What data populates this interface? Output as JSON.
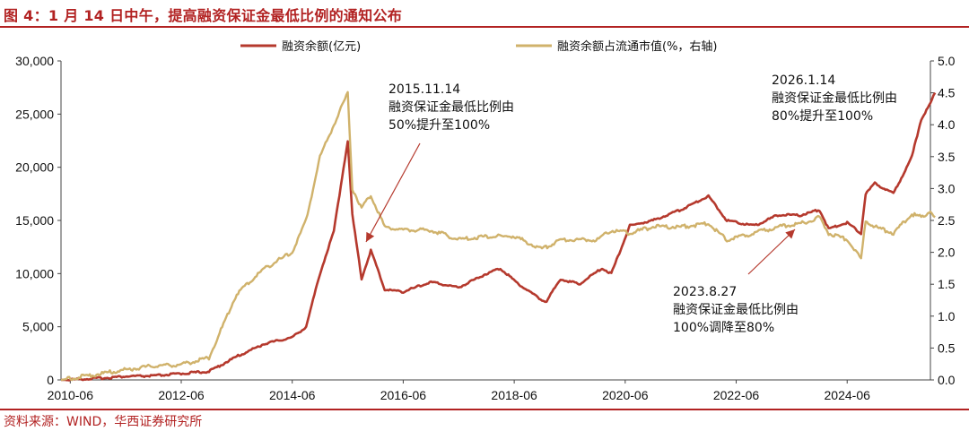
{
  "header": {
    "title": "图 4：1 月 14 日中午，提高融资保证金最低比例的通知公布"
  },
  "footer": {
    "source": "资料来源：WIND，华西证券研究所"
  },
  "chart_data": {
    "type": "line",
    "xlim": [
      "2010-04",
      "2025-12"
    ],
    "x_ticks": [
      "2010-06",
      "2012-06",
      "2014-06",
      "2016-06",
      "2018-06",
      "2020-06",
      "2022-06",
      "2024-06"
    ],
    "y_left": {
      "lim": [
        0,
        30000
      ],
      "ticks": [
        "0",
        "5,000",
        "10,000",
        "15,000",
        "20,000",
        "25,000",
        "30,000"
      ]
    },
    "y_right": {
      "lim": [
        0,
        5.0
      ],
      "ticks": [
        "0.0",
        "0.5",
        "1.0",
        "1.5",
        "2.0",
        "2.5",
        "3.0",
        "3.5",
        "4.0",
        "4.5",
        "5.0"
      ]
    },
    "legend": {
      "placement": "top"
    },
    "series": [
      {
        "name": "融资余额(亿元)",
        "axis": "left",
        "color": "#b5392d",
        "points": [
          [
            "2010-04",
            0
          ],
          [
            "2010-12",
            150
          ],
          [
            "2011-06",
            330
          ],
          [
            "2011-12",
            380
          ],
          [
            "2012-06",
            600
          ],
          [
            "2012-12",
            800
          ],
          [
            "2013-06",
            2200
          ],
          [
            "2013-12",
            3400
          ],
          [
            "2014-06",
            4000
          ],
          [
            "2014-09",
            5000
          ],
          [
            "2014-12",
            10000
          ],
          [
            "2015-03",
            14000
          ],
          [
            "2015-06",
            22500
          ],
          [
            "2015-07",
            15500
          ],
          [
            "2015-09",
            9500
          ],
          [
            "2015-11",
            12200
          ],
          [
            "2016-02",
            8500
          ],
          [
            "2016-06",
            8300
          ],
          [
            "2016-12",
            9200
          ],
          [
            "2017-06",
            8700
          ],
          [
            "2017-12",
            10000
          ],
          [
            "2018-03",
            10500
          ],
          [
            "2018-07",
            9000
          ],
          [
            "2018-12",
            7500
          ],
          [
            "2019-01",
            7400
          ],
          [
            "2019-04",
            9500
          ],
          [
            "2019-08",
            9000
          ],
          [
            "2020-01",
            10500
          ],
          [
            "2020-03",
            10000
          ],
          [
            "2020-07",
            14500
          ],
          [
            "2020-12",
            15000
          ],
          [
            "2021-06",
            16000
          ],
          [
            "2021-12",
            17300
          ],
          [
            "2022-04",
            15000
          ],
          [
            "2022-10",
            14500
          ],
          [
            "2023-03",
            15500
          ],
          [
            "2023-08",
            15500
          ],
          [
            "2023-12",
            16000
          ],
          [
            "2024-02",
            14200
          ],
          [
            "2024-06",
            14800
          ],
          [
            "2024-09",
            13800
          ],
          [
            "2024-10",
            17500
          ],
          [
            "2024-12",
            18500
          ],
          [
            "2025-04",
            17500
          ],
          [
            "2025-08",
            21000
          ],
          [
            "2025-10",
            24500
          ],
          [
            "2025-12",
            26000
          ],
          [
            "2026-01",
            27000
          ]
        ]
      },
      {
        "name": "融资余额占流通市值(%，右轴)",
        "axis": "right",
        "color": "#d0b26b",
        "points": [
          [
            "2010-04",
            0.0
          ],
          [
            "2010-12",
            0.09
          ],
          [
            "2011-06",
            0.16
          ],
          [
            "2011-12",
            0.22
          ],
          [
            "2012-06",
            0.24
          ],
          [
            "2012-12",
            0.35
          ],
          [
            "2013-06",
            1.35
          ],
          [
            "2013-12",
            1.75
          ],
          [
            "2014-06",
            2.0
          ],
          [
            "2014-09",
            2.5
          ],
          [
            "2014-12",
            3.5
          ],
          [
            "2015-03",
            4.0
          ],
          [
            "2015-06",
            4.5
          ],
          [
            "2015-07",
            3.0
          ],
          [
            "2015-09",
            2.7
          ],
          [
            "2015-11",
            2.9
          ],
          [
            "2016-02",
            2.4
          ],
          [
            "2016-06",
            2.35
          ],
          [
            "2016-12",
            2.35
          ],
          [
            "2017-06",
            2.2
          ],
          [
            "2017-12",
            2.25
          ],
          [
            "2018-06",
            2.25
          ],
          [
            "2018-12",
            2.05
          ],
          [
            "2019-04",
            2.2
          ],
          [
            "2019-12",
            2.2
          ],
          [
            "2020-03",
            2.35
          ],
          [
            "2020-07",
            2.3
          ],
          [
            "2020-12",
            2.4
          ],
          [
            "2021-06",
            2.4
          ],
          [
            "2021-12",
            2.45
          ],
          [
            "2022-04",
            2.2
          ],
          [
            "2022-10",
            2.3
          ],
          [
            "2023-03",
            2.4
          ],
          [
            "2023-08",
            2.45
          ],
          [
            "2023-12",
            2.55
          ],
          [
            "2024-02",
            2.3
          ],
          [
            "2024-06",
            2.2
          ],
          [
            "2024-09",
            1.9
          ],
          [
            "2024-10",
            2.5
          ],
          [
            "2024-12",
            2.4
          ],
          [
            "2025-04",
            2.3
          ],
          [
            "2025-08",
            2.6
          ],
          [
            "2025-10",
            2.55
          ],
          [
            "2025-12",
            2.65
          ],
          [
            "2026-01",
            2.55
          ]
        ]
      }
    ],
    "annotations": [
      {
        "lines": [
          "2015.11.14",
          "融资保证金最低比例由",
          "50%提升至100%"
        ],
        "date": "2015-11"
      },
      {
        "lines": [
          "2023.8.27",
          "融资保证金最低比例由",
          "100%调降至80%"
        ],
        "date": "2023-08"
      },
      {
        "lines": [
          "2026.1.14",
          "融资保证金最低比例由",
          "80%提升至100%"
        ],
        "date": "2026-01"
      }
    ]
  }
}
